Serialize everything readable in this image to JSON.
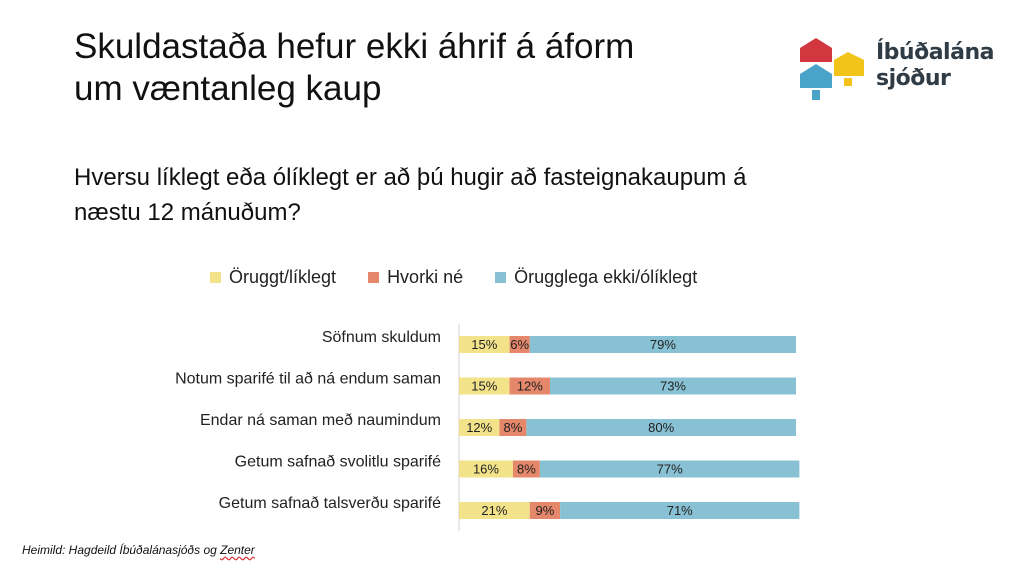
{
  "slide": {
    "title_line1": "Skuldastaða hefur ekki áhrif á áform",
    "title_line2": "um væntanleg kaup",
    "subtitle_line1": "Hversu líklegt eða ólíklegt er að þú hugir að fasteignakaupum á",
    "subtitle_line2": "næstu 12 mánuðum?",
    "source_prefix": "Heimild: Hagdeild Íbúðalánasjóðs og ",
    "source_zenter": "Zenter"
  },
  "logo": {
    "line1": "Íbúðalána",
    "line2": "sjóður",
    "colors": {
      "red": "#d2363f",
      "yellow": "#f2c318",
      "teal": "#4aa3c9",
      "dark": "#2f3b45"
    }
  },
  "chart_data": {
    "type": "bar",
    "orientation": "horizontal",
    "stacked": true,
    "percent": true,
    "categories": [
      "Söfnum skuldum",
      "Notum sparifé til að ná endum saman",
      "Endar ná saman með naumindum",
      "Getum safnað svolitlu sparifé",
      "Getum safnað talsverðu sparifé"
    ],
    "series": [
      {
        "name": "Öruggt/líklegt",
        "color": "#f2e38a",
        "values": [
          15,
          15,
          12,
          16,
          21
        ],
        "labels": [
          "15%",
          "15%",
          "12%",
          "16%",
          "21%"
        ]
      },
      {
        "name": "Hvorki né",
        "color": "#e5876a",
        "values": [
          6,
          12,
          8,
          8,
          9
        ],
        "labels": [
          "6%",
          "12%",
          "8%",
          "8%",
          "9%"
        ]
      },
      {
        "name": "Örugglega ekki/ólíklegt",
        "color": "#88c1d3",
        "values": [
          79,
          73,
          80,
          77,
          71
        ],
        "labels": [
          "79%",
          "73%",
          "80%",
          "77%",
          "71%"
        ]
      }
    ],
    "xlim": [
      0,
      100
    ],
    "grid": false,
    "legend_position": "top"
  }
}
